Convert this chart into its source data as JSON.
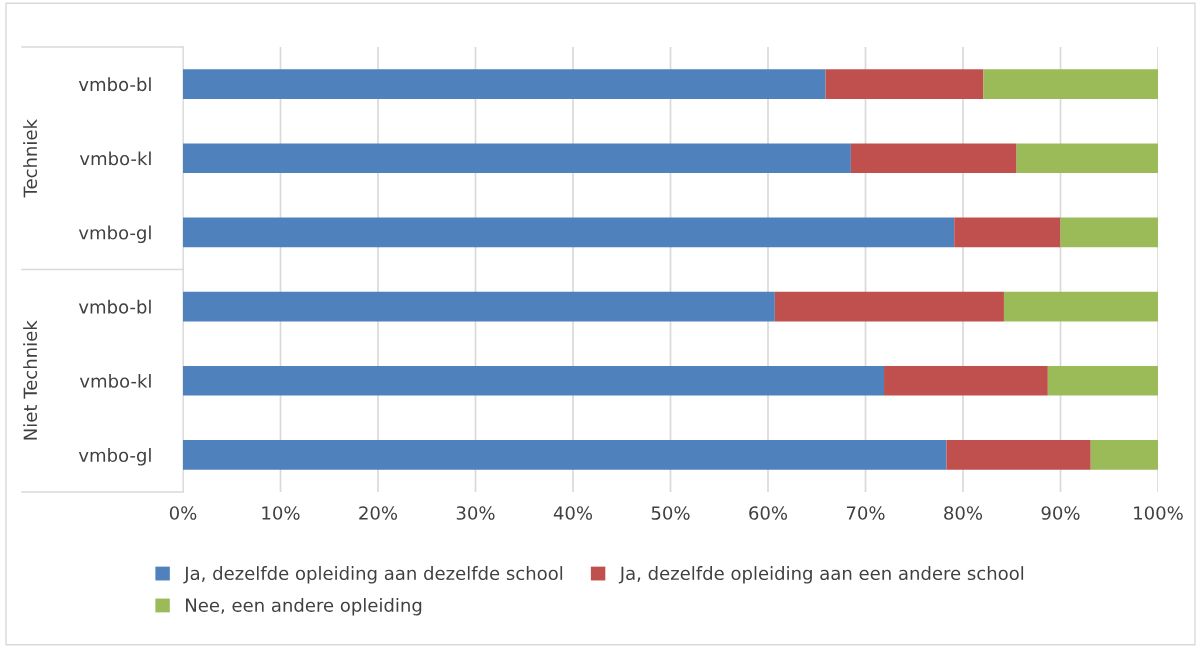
{
  "chart_data": {
    "type": "bar",
    "orientation": "horizontal",
    "stacked": true,
    "categories": [
      "vmbo-bl",
      "vmbo-kl",
      "vmbo-gl",
      "vmbo-bl",
      "vmbo-kl",
      "vmbo-gl"
    ],
    "series": [
      {
        "name": "Ja, dezelfde opleiding aan dezelfde school",
        "color": "#4f81bd",
        "values": [
          65.9,
          68.5,
          79.1,
          60.7,
          71.9,
          78.3
        ]
      },
      {
        "name": "Ja, dezelfde opleiding aan een andere school",
        "color": "#c0504d",
        "values": [
          16.2,
          17.0,
          10.9,
          23.5,
          16.8,
          14.8
        ]
      },
      {
        "name": "Nee, een andere opleiding",
        "color": "#9bbb59",
        "values": [
          17.9,
          14.5,
          10.0,
          15.8,
          11.3,
          6.9
        ]
      }
    ],
    "annotations": [
      "Techniek",
      "Niet Techniek"
    ],
    "xlim": [
      0,
      100
    ],
    "xticks": [
      {
        "value": 0,
        "label": "0%"
      },
      {
        "value": 10,
        "label": "10%"
      },
      {
        "value": 20,
        "label": "20%"
      },
      {
        "value": 30,
        "label": "30%"
      },
      {
        "value": 40,
        "label": "40%"
      },
      {
        "value": 50,
        "label": "50%"
      },
      {
        "value": 60,
        "label": "60%"
      },
      {
        "value": 70,
        "label": "70%"
      },
      {
        "value": 80,
        "label": "80%"
      },
      {
        "value": 90,
        "label": "90%"
      },
      {
        "value": 100,
        "label": "100%"
      }
    ],
    "grid": "x",
    "legend": "bottom"
  }
}
